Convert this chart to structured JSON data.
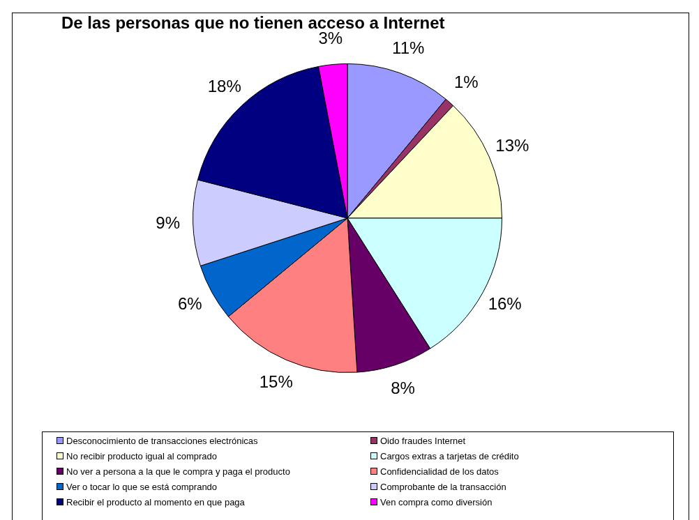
{
  "chart_data": {
    "type": "pie",
    "title": "De las personas que no tienen acceso a Internet",
    "categories": [
      "Desconocimiento de transacciones electrónicas",
      "Oido fraudes Internet",
      "No recibir producto igual al comprado",
      "Cargos extras a tarjetas de crédito",
      "No ver a persona a la que le compra y paga el producto",
      "Confidencialidad de los datos",
      "Ver o tocar lo que se está comprando",
      "Comprobante de la transacción",
      "Recibir el producto al momento en que paga",
      "Ven compra como diversión"
    ],
    "values": [
      11,
      1,
      13,
      16,
      8,
      15,
      6,
      9,
      18,
      3
    ],
    "value_labels": [
      "11%",
      "1%",
      "13%",
      "16%",
      "8%",
      "15%",
      "6%",
      "9%",
      "18%",
      "3%"
    ],
    "colors": [
      "#9999ff",
      "#993366",
      "#ffffcc",
      "#ccffff",
      "#660066",
      "#ff8080",
      "#0066cc",
      "#ccccff",
      "#000080",
      "#ff00ff"
    ],
    "legend": "bottom"
  }
}
